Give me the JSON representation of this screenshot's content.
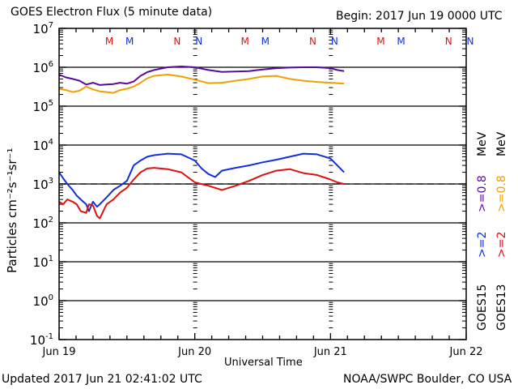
{
  "header": {
    "title": "GOES Electron Flux (5 minute data)",
    "begin": "Begin: 2017 Jun 19 0000 UTC"
  },
  "footer": {
    "updated": "Updated 2017 Jun 21 02:41:02 UTC",
    "credit": "NOAA/SWPC Boulder, CO USA"
  },
  "chart_data": {
    "type": "line",
    "title": "GOES Electron Flux (5 minute data)",
    "xlabel": "Universal Time",
    "ylabel": "Particles cm⁻²s⁻¹sr⁻¹",
    "yscale": "log",
    "ylim": [
      0.1,
      10000000
    ],
    "xlim_days": [
      0,
      3
    ],
    "x_tick_labels": [
      "Jun 19",
      "Jun 20",
      "Jun 21",
      "Jun 22"
    ],
    "y_tick_labels": [
      {
        "base": "10",
        "exp": "7",
        "value": 10000000
      },
      {
        "base": "10",
        "exp": "6",
        "value": 1000000
      },
      {
        "base": "10",
        "exp": "5",
        "value": 100000
      },
      {
        "base": "10",
        "exp": "4",
        "value": 10000
      },
      {
        "base": "10",
        "exp": "3",
        "value": 1000
      },
      {
        "base": "10",
        "exp": "2",
        "value": 100
      },
      {
        "base": "10",
        "exp": "1",
        "value": 10
      },
      {
        "base": "10",
        "exp": "0",
        "value": 1
      },
      {
        "base": "10",
        "exp": "-1",
        "value": 0.1
      }
    ],
    "grid": "horizontal at each decade",
    "threshold": {
      "value": 1000,
      "style": "dashed"
    },
    "day_markers": [
      {
        "label": "M",
        "color": "#e01010",
        "day": 0.37
      },
      {
        "label": "M",
        "color": "#1030e0",
        "day": 0.52
      },
      {
        "label": "N",
        "color": "#e01010",
        "day": 0.87
      },
      {
        "label": "N",
        "color": "#1030e0",
        "day": 1.03
      },
      {
        "label": "M",
        "color": "#e01010",
        "day": 1.37
      },
      {
        "label": "M",
        "color": "#1030e0",
        "day": 1.52
      },
      {
        "label": "N",
        "color": "#e01010",
        "day": 1.87
      },
      {
        "label": "N",
        "color": "#1030e0",
        "day": 2.03
      },
      {
        "label": "M",
        "color": "#e01010",
        "day": 2.37
      },
      {
        "label": "M",
        "color": "#1030e0",
        "day": 2.52
      },
      {
        "label": "N",
        "color": "#e01010",
        "day": 2.87
      },
      {
        "label": "N",
        "color": "#1030e0",
        "day": 3.03
      }
    ],
    "legend": {
      "placement": "right",
      "columns": [
        {
          "satellite": "GOES15",
          "entries": [
            {
              "label": ">=2",
              "color": "#1030e0"
            },
            {
              "label": ">=0.8",
              "color": "#5a0aa0"
            }
          ],
          "unit": "MeV"
        },
        {
          "satellite": "GOES13",
          "entries": [
            {
              "label": ">=2",
              "color": "#e01010"
            },
            {
              "label": ">=0.8",
              "color": "#f0a000"
            }
          ],
          "unit": "MeV"
        }
      ]
    },
    "series": [
      {
        "name": "GOES15 >=0.8 MeV",
        "color": "#5a0aa0",
        "x": [
          0.0,
          0.05,
          0.1,
          0.15,
          0.2,
          0.25,
          0.3,
          0.35,
          0.4,
          0.45,
          0.5,
          0.55,
          0.6,
          0.65,
          0.7,
          0.8,
          0.9,
          1.0,
          1.1,
          1.2,
          1.3,
          1.4,
          1.5,
          1.6,
          1.7,
          1.8,
          1.9,
          2.0,
          2.05,
          2.1
        ],
        "y": [
          650000,
          550000,
          500000,
          450000,
          360000,
          400000,
          350000,
          360000,
          370000,
          400000,
          380000,
          430000,
          600000,
          750000,
          850000,
          1000000,
          1050000,
          1000000,
          850000,
          760000,
          780000,
          800000,
          880000,
          950000,
          980000,
          1000000,
          1000000,
          950000,
          850000,
          800000
        ]
      },
      {
        "name": "GOES13 >=0.8 MeV",
        "color": "#f0a000",
        "x": [
          0.0,
          0.05,
          0.1,
          0.15,
          0.2,
          0.25,
          0.3,
          0.35,
          0.4,
          0.45,
          0.5,
          0.55,
          0.6,
          0.65,
          0.7,
          0.8,
          0.9,
          1.0,
          1.1,
          1.2,
          1.3,
          1.4,
          1.5,
          1.6,
          1.7,
          1.8,
          1.9,
          2.0,
          2.05,
          2.1
        ],
        "y": [
          280000,
          260000,
          230000,
          250000,
          320000,
          270000,
          240000,
          230000,
          220000,
          260000,
          280000,
          320000,
          400000,
          520000,
          600000,
          650000,
          580000,
          480000,
          390000,
          400000,
          450000,
          500000,
          580000,
          600000,
          500000,
          450000,
          420000,
          400000,
          390000,
          380000
        ]
      },
      {
        "name": "GOES15 >=2 MeV",
        "color": "#1030e0",
        "x": [
          0.0,
          0.03,
          0.06,
          0.1,
          0.13,
          0.16,
          0.2,
          0.22,
          0.25,
          0.28,
          0.3,
          0.35,
          0.4,
          0.45,
          0.5,
          0.55,
          0.6,
          0.65,
          0.7,
          0.8,
          0.9,
          1.0,
          1.05,
          1.1,
          1.15,
          1.2,
          1.3,
          1.4,
          1.5,
          1.6,
          1.7,
          1.8,
          1.9,
          2.0,
          2.05,
          2.1
        ],
        "y": [
          2000,
          1400,
          1000,
          700,
          500,
          400,
          300,
          200,
          350,
          260,
          300,
          450,
          700,
          900,
          1200,
          3000,
          4000,
          5000,
          5500,
          6000,
          5800,
          4000,
          2500,
          1800,
          1500,
          2200,
          2600,
          3000,
          3600,
          4200,
          5000,
          6000,
          5800,
          4500,
          3000,
          2000
        ]
      },
      {
        "name": "GOES13 >=2 MeV",
        "color": "#e01010",
        "x": [
          0.0,
          0.03,
          0.06,
          0.1,
          0.13,
          0.16,
          0.2,
          0.22,
          0.25,
          0.28,
          0.3,
          0.35,
          0.4,
          0.45,
          0.5,
          0.55,
          0.6,
          0.65,
          0.7,
          0.8,
          0.9,
          1.0,
          1.1,
          1.2,
          1.3,
          1.4,
          1.5,
          1.6,
          1.7,
          1.8,
          1.9,
          2.0,
          2.05,
          2.1
        ],
        "y": [
          350,
          300,
          400,
          350,
          300,
          200,
          180,
          300,
          280,
          150,
          130,
          300,
          400,
          600,
          800,
          1300,
          2000,
          2500,
          2600,
          2400,
          2000,
          1100,
          900,
          700,
          900,
          1200,
          1700,
          2200,
          2400,
          1900,
          1700,
          1300,
          1100,
          1000
        ]
      }
    ]
  }
}
